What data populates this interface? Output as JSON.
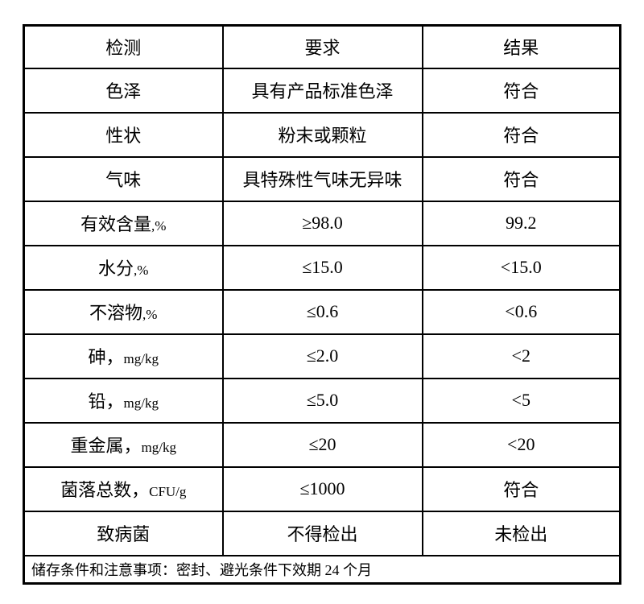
{
  "page": {
    "background": "#ffffff",
    "border_color": "#000000"
  },
  "table": {
    "columns": [
      "检测",
      "要求",
      "结果"
    ],
    "rows": [
      {
        "parameter": "色泽",
        "requirement": "具有产品标准色泽",
        "result": "符合"
      },
      {
        "parameter": "性状",
        "requirement": "粉末或颗粒",
        "result": "符合"
      },
      {
        "parameter": "气味",
        "requirement": "具特殊性气味无异味",
        "result": "符合"
      },
      {
        "parameter": "有效含量,%",
        "requirement": "≥98.0",
        "result": "99.2"
      },
      {
        "parameter": "水分,%",
        "requirement": "≤15.0",
        "result": "<15.0"
      },
      {
        "parameter": "不溶物,%",
        "requirement": "≤0.6",
        "result": "<0.6"
      },
      {
        "parameter": "砷，mg/kg",
        "requirement": "≤2.0",
        "result": "<2"
      },
      {
        "parameter": "铅，mg/kg",
        "requirement": "≤5.0",
        "result": "<5"
      },
      {
        "parameter": "重金属，mg/kg",
        "requirement": "≤20",
        "result": "<20"
      },
      {
        "parameter": "菌落总数，CFU/g",
        "requirement": "≤1000",
        "result": "符合"
      },
      {
        "parameter": "致病菌",
        "requirement": "不得检出",
        "result": "未检出"
      }
    ],
    "footer_note": "储存条件和注意事项：密封、避光条件下效期 24 个月"
  }
}
